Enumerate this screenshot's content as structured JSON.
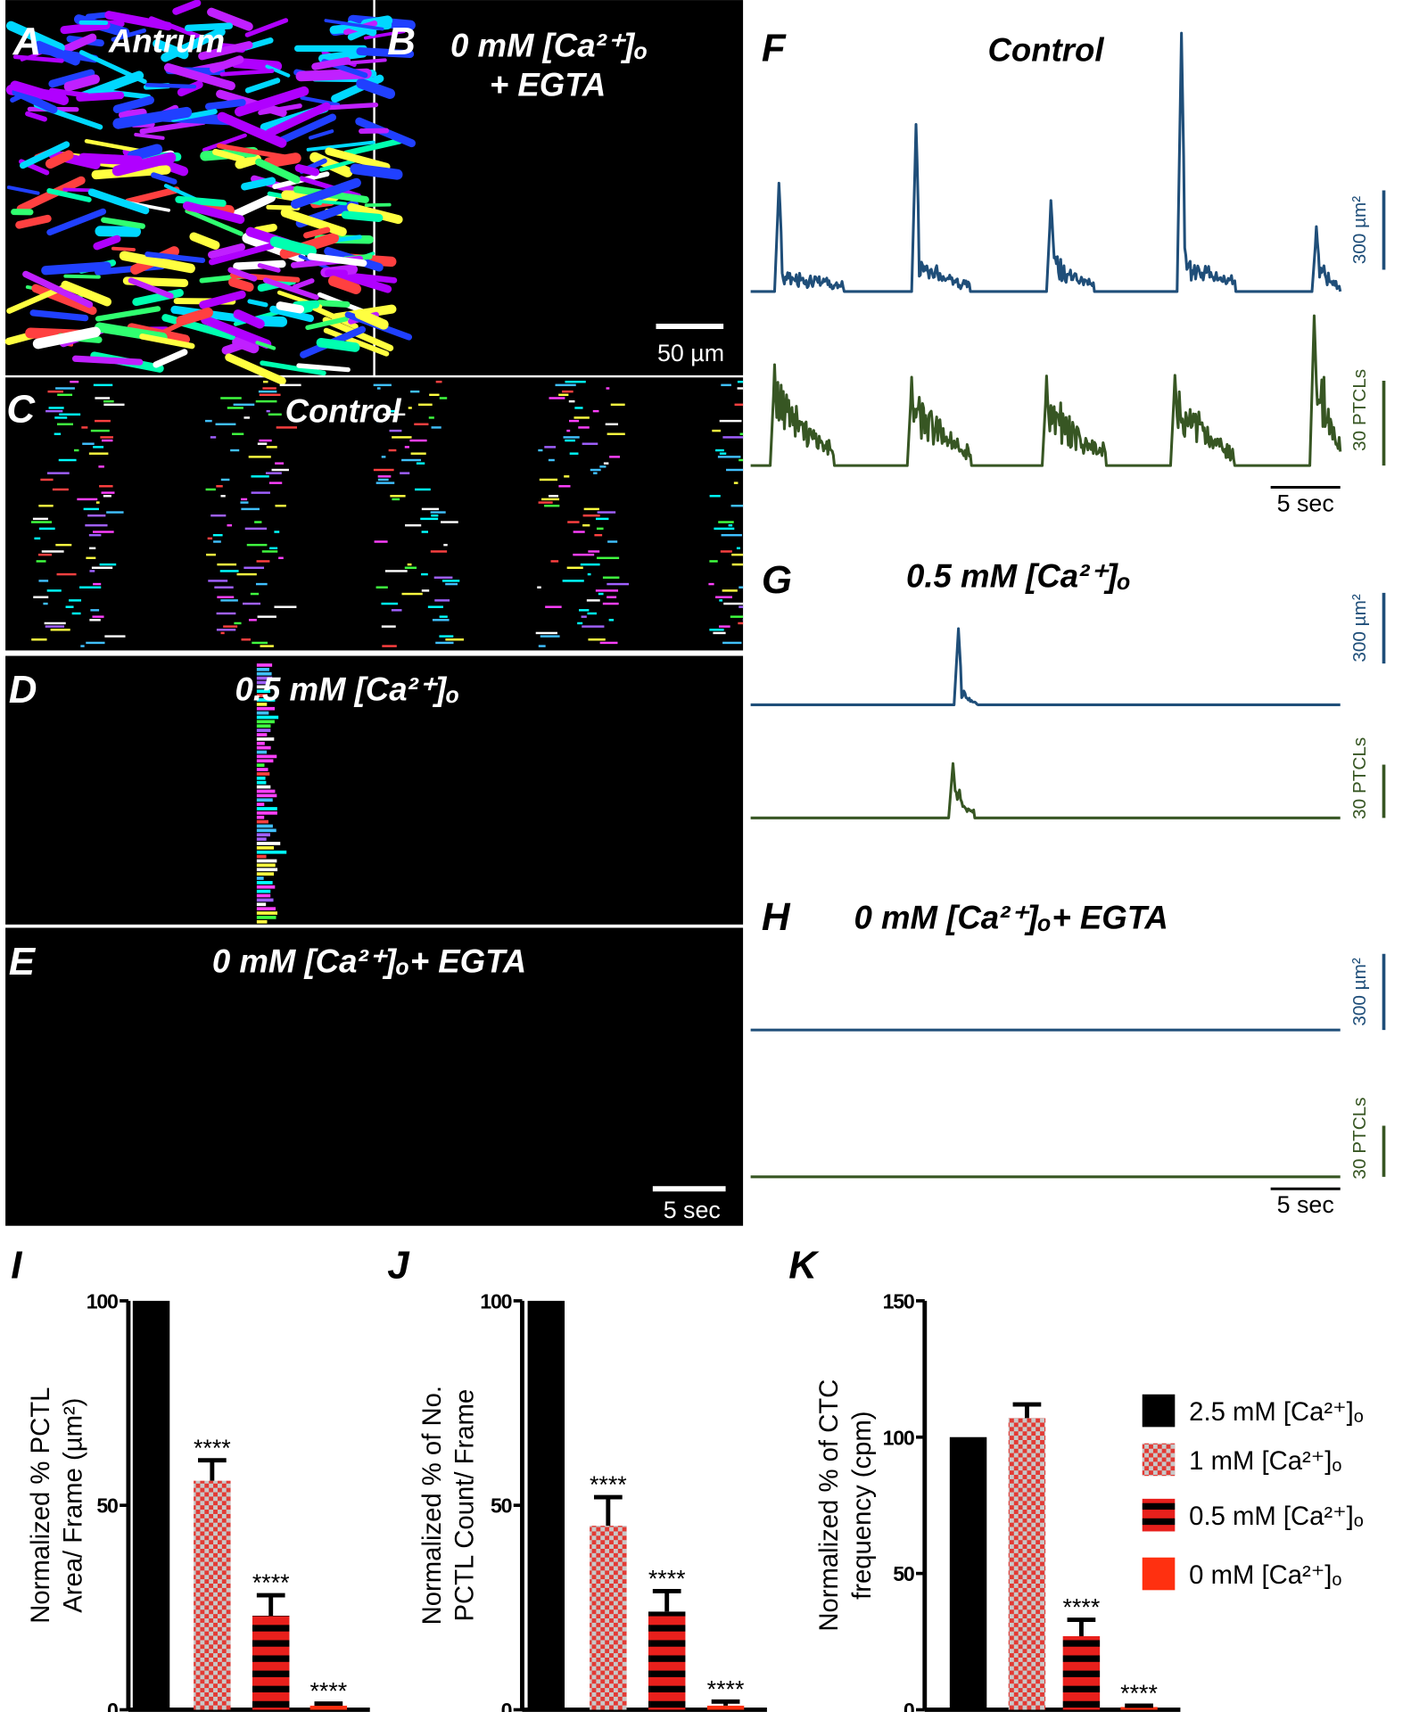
{
  "panels": [
    {
      "label": "A",
      "title": "Antrum"
    },
    {
      "label": "B",
      "title": [
        "0 mM [Ca²⁺]ₒ",
        "+ EGTA"
      ],
      "scale": "50 µm"
    },
    {
      "label": "C",
      "title": "Control"
    },
    {
      "label": "D",
      "title": "0.5 mM [Ca²⁺]ₒ"
    },
    {
      "label": "E",
      "title": "0 mM [Ca²⁺]ₒ+ EGTA",
      "scale": "5 sec"
    },
    {
      "label": "F",
      "title": "Control",
      "scale_area": "300 µm²",
      "scale_count": "30 PTCLs",
      "scale_time": "5 sec"
    },
    {
      "label": "G",
      "title": "0.5 mM [Ca²⁺]ₒ",
      "scale_area": "300 µm²",
      "scale_count": "30 PTCLs"
    },
    {
      "label": "H",
      "title": "0 mM [Ca²⁺]ₒ+ EGTA",
      "scale_area": "300 µm²",
      "scale_count": "30 PTCLs",
      "scale_time": "5 sec"
    }
  ],
  "chart_data": [
    {
      "type": "bar",
      "panel_label": "I",
      "ylabel": [
        "Normalized % PCTL",
        "Area/ Frame (µm²)"
      ],
      "categories": [
        "2.5 mM [Ca²⁺]ₒ",
        "1 mM [Ca²⁺]ₒ",
        "0.5 mM [Ca²⁺]ₒ",
        "0 mM [Ca²⁺]ₒ"
      ],
      "values": [
        100,
        56,
        23,
        1
      ],
      "errors": [
        0,
        5,
        5,
        0.5
      ],
      "significance": [
        null,
        "****",
        "****",
        "****"
      ],
      "colors": [
        "#000000",
        "#e23a34",
        "#e8201c",
        "#ff3010"
      ],
      "patterns": [
        "solid",
        "checker",
        "stripes",
        "solid"
      ],
      "ylim": [
        0,
        100
      ],
      "yticks": [
        0,
        50,
        100
      ],
      "legend": false
    },
    {
      "type": "bar",
      "panel_label": "J",
      "ylabel": [
        "Normalized % of No.",
        "PCTL Count/ Frame"
      ],
      "categories": [
        "2.5 mM [Ca²⁺]ₒ",
        "1 mM [Ca²⁺]ₒ",
        "0.5 mM [Ca²⁺]ₒ",
        "0 mM [Ca²⁺]ₒ"
      ],
      "values": [
        100,
        45,
        24,
        1
      ],
      "errors": [
        0,
        7,
        5,
        1
      ],
      "significance": [
        null,
        "****",
        "****",
        "****"
      ],
      "colors": [
        "#000000",
        "#e23a34",
        "#e8201c",
        "#ff3010"
      ],
      "patterns": [
        "solid",
        "checker",
        "stripes",
        "solid"
      ],
      "ylim": [
        0,
        100
      ],
      "yticks": [
        0,
        50,
        100
      ],
      "legend": false
    },
    {
      "type": "bar",
      "panel_label": "K",
      "ylabel": [
        "Normalized % of CTC",
        "frequency (cpm)"
      ],
      "categories": [
        "2.5 mM [Ca²⁺]ₒ",
        "1 mM [Ca²⁺]ₒ",
        "0.5 mM [Ca²⁺]ₒ",
        "0 mM [Ca²⁺]ₒ"
      ],
      "values": [
        100,
        107,
        27,
        1
      ],
      "errors": [
        0,
        5,
        6,
        0.5
      ],
      "significance": [
        null,
        null,
        "****",
        "****"
      ],
      "colors": [
        "#000000",
        "#e23a34",
        "#e8201c",
        "#ff3010"
      ],
      "patterns": [
        "solid",
        "checker",
        "stripes",
        "solid"
      ],
      "ylim": [
        0,
        150
      ],
      "yticks": [
        0,
        50,
        100,
        150
      ],
      "legend": true
    }
  ]
}
